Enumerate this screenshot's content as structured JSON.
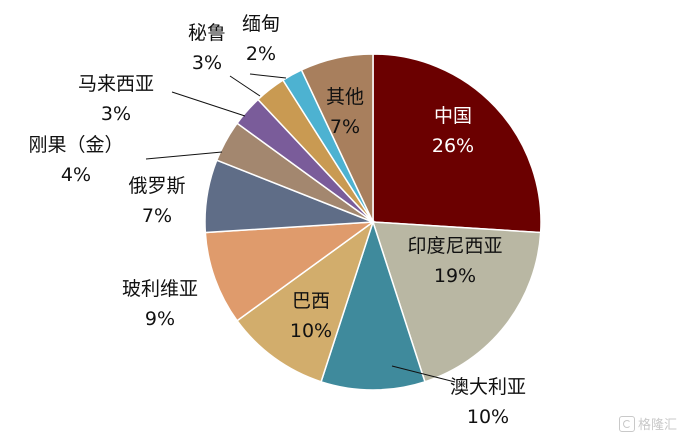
{
  "chart_data": {
    "type": "pie",
    "start_angle_deg": 0,
    "direction": "clockwise",
    "slices": [
      {
        "label": "中国",
        "value": 26,
        "value_label": "26%",
        "color": "#6b0000"
      },
      {
        "label": "印度尼西亚",
        "value": 19,
        "value_label": "19%",
        "color": "#b9b7a3"
      },
      {
        "label": "澳大利亚",
        "value": 10,
        "value_label": "10%",
        "color": "#3f8a9c"
      },
      {
        "label": "巴西",
        "value": 10,
        "value_label": "10%",
        "color": "#d2ad6c"
      },
      {
        "label": "玻利维亚",
        "value": 9,
        "value_label": "9%",
        "color": "#df9b6c"
      },
      {
        "label": "俄罗斯",
        "value": 7,
        "value_label": "7%",
        "color": "#5f6d87"
      },
      {
        "label": "刚果（金）",
        "value": 4,
        "value_label": "4%",
        "color": "#a3876f"
      },
      {
        "label": "马来西亚",
        "value": 3,
        "value_label": "3%",
        "color": "#7a5c9a"
      },
      {
        "label": "秘鲁",
        "value": 3,
        "value_label": "3%",
        "color": "#c99a52"
      },
      {
        "label": "缅甸",
        "value": 2,
        "value_label": "2%",
        "color": "#4db2d1"
      },
      {
        "label": "其他",
        "value": 7,
        "value_label": "7%",
        "color": "#a87f5d"
      }
    ]
  },
  "watermark": {
    "text": "格隆汇"
  }
}
